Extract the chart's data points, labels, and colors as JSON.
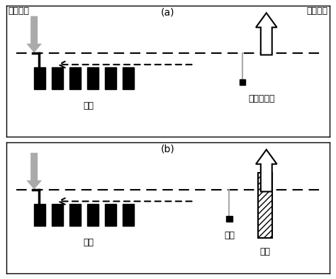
{
  "fig_width": 4.74,
  "fig_height": 3.94,
  "dpi": 100,
  "bg_color": "#ffffff",
  "panel_a_label": "(a)",
  "panel_b_label": "(b)",
  "label_maichong": "脉冲激励",
  "label_jiance": "检测系统",
  "label_shengyuan": "声源",
  "label_transducer": "声波换能器",
  "label_electrode": "电极",
  "label_rock": "岩样",
  "black": "#000000",
  "gray": "#aaaaaa",
  "white": "#ffffff"
}
